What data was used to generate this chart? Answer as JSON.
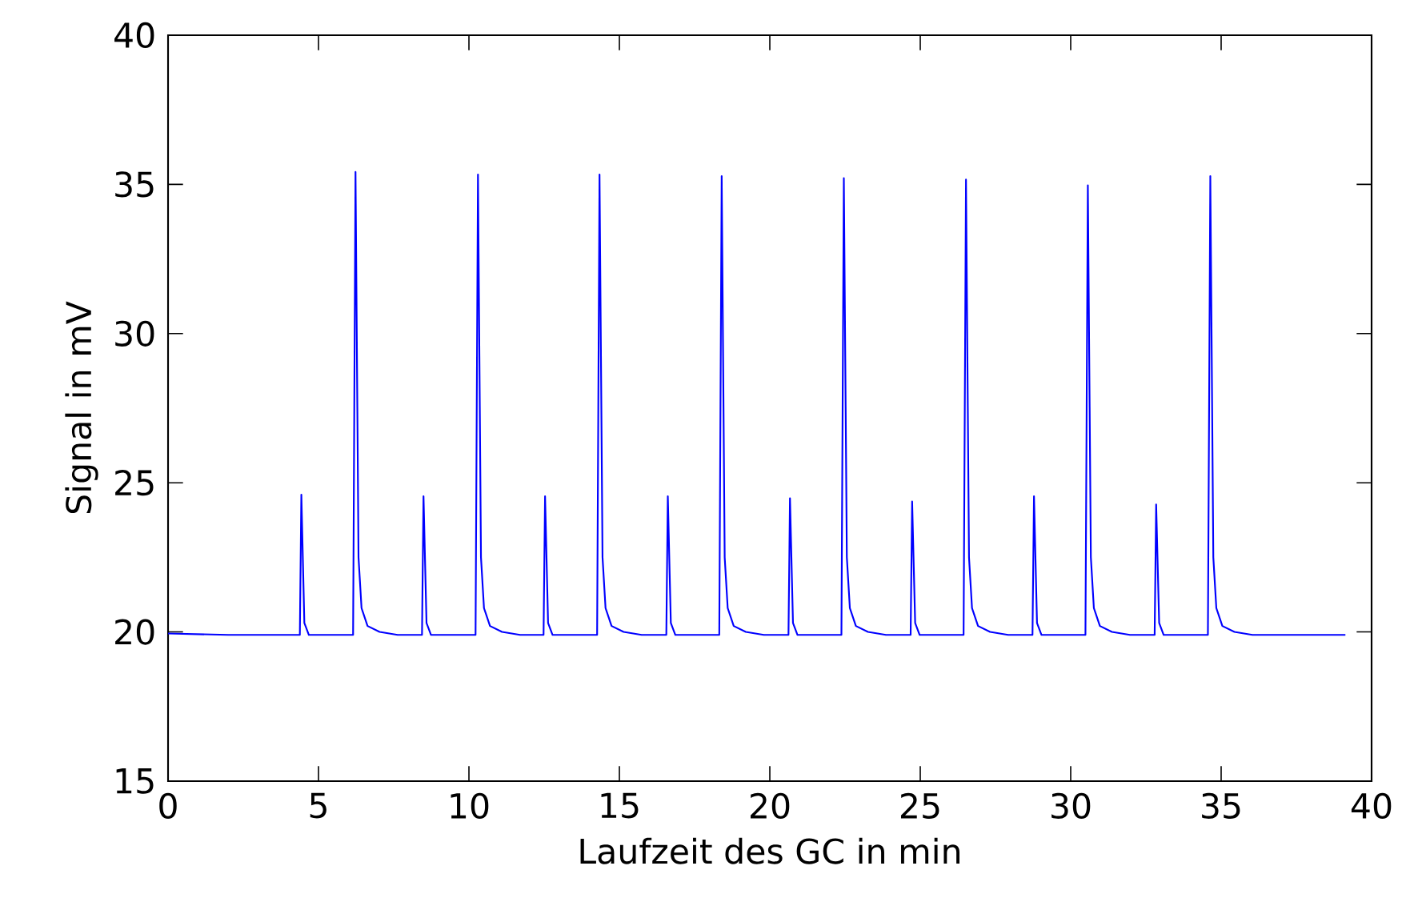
{
  "chart_data": {
    "type": "line",
    "xlabel": "Laufzeit des GC in min",
    "ylabel": "Signal in mV",
    "xlim": [
      0,
      40
    ],
    "ylim": [
      15,
      40
    ],
    "xticks": [
      0,
      5,
      10,
      15,
      20,
      25,
      30,
      35,
      40
    ],
    "yticks": [
      15,
      20,
      25,
      30,
      35,
      40
    ],
    "x": [
      0,
      2,
      4.38,
      4.43,
      4.53,
      4.68,
      6.15,
      6.23,
      6.33,
      6.43,
      6.63,
      7.03,
      7.63,
      8.44,
      8.49,
      8.59,
      8.74,
      10.22,
      10.3,
      10.4,
      10.5,
      10.7,
      11.1,
      11.7,
      12.48,
      12.53,
      12.63,
      12.78,
      14.26,
      14.34,
      14.44,
      14.54,
      14.74,
      15.14,
      15.74,
      16.56,
      16.61,
      16.71,
      16.86,
      18.32,
      18.4,
      18.5,
      18.6,
      18.8,
      19.2,
      19.8,
      20.62,
      20.67,
      20.77,
      20.92,
      22.38,
      22.46,
      22.56,
      22.66,
      22.86,
      23.26,
      23.86,
      24.68,
      24.73,
      24.83,
      24.98,
      26.44,
      26.52,
      26.62,
      26.72,
      26.92,
      27.32,
      27.92,
      28.73,
      28.78,
      28.88,
      29.03,
      30.49,
      30.57,
      30.67,
      30.77,
      30.97,
      31.37,
      31.97,
      32.79,
      32.84,
      32.94,
      33.09,
      34.56,
      34.64,
      34.74,
      34.84,
      35.04,
      35.44,
      36.04,
      39.13
    ],
    "series": [
      {
        "color": "#0000ff",
        "line_style": "solid",
        "values": [
          19.95,
          19.9,
          19.9,
          24.6,
          20.3,
          19.9,
          19.9,
          35.42,
          22.5,
          20.8,
          20.2,
          20.0,
          19.9,
          19.9,
          24.55,
          20.3,
          19.9,
          19.9,
          35.33,
          22.5,
          20.8,
          20.2,
          20.0,
          19.9,
          19.9,
          24.55,
          20.3,
          19.9,
          19.9,
          35.33,
          22.5,
          20.8,
          20.2,
          20.0,
          19.9,
          19.9,
          24.55,
          20.3,
          19.9,
          19.9,
          35.28,
          22.5,
          20.8,
          20.2,
          20.0,
          19.9,
          19.9,
          24.48,
          20.3,
          19.9,
          19.9,
          35.21,
          22.5,
          20.8,
          20.2,
          20.0,
          19.9,
          19.9,
          24.37,
          20.3,
          19.9,
          19.9,
          35.16,
          22.5,
          20.8,
          20.2,
          20.0,
          19.9,
          19.9,
          24.55,
          20.3,
          19.9,
          19.9,
          34.97,
          22.5,
          20.8,
          20.2,
          20.0,
          19.9,
          19.9,
          24.27,
          20.3,
          19.9,
          19.9,
          35.28,
          22.5,
          20.8,
          20.2,
          20.0,
          19.9,
          19.9
        ]
      }
    ]
  }
}
